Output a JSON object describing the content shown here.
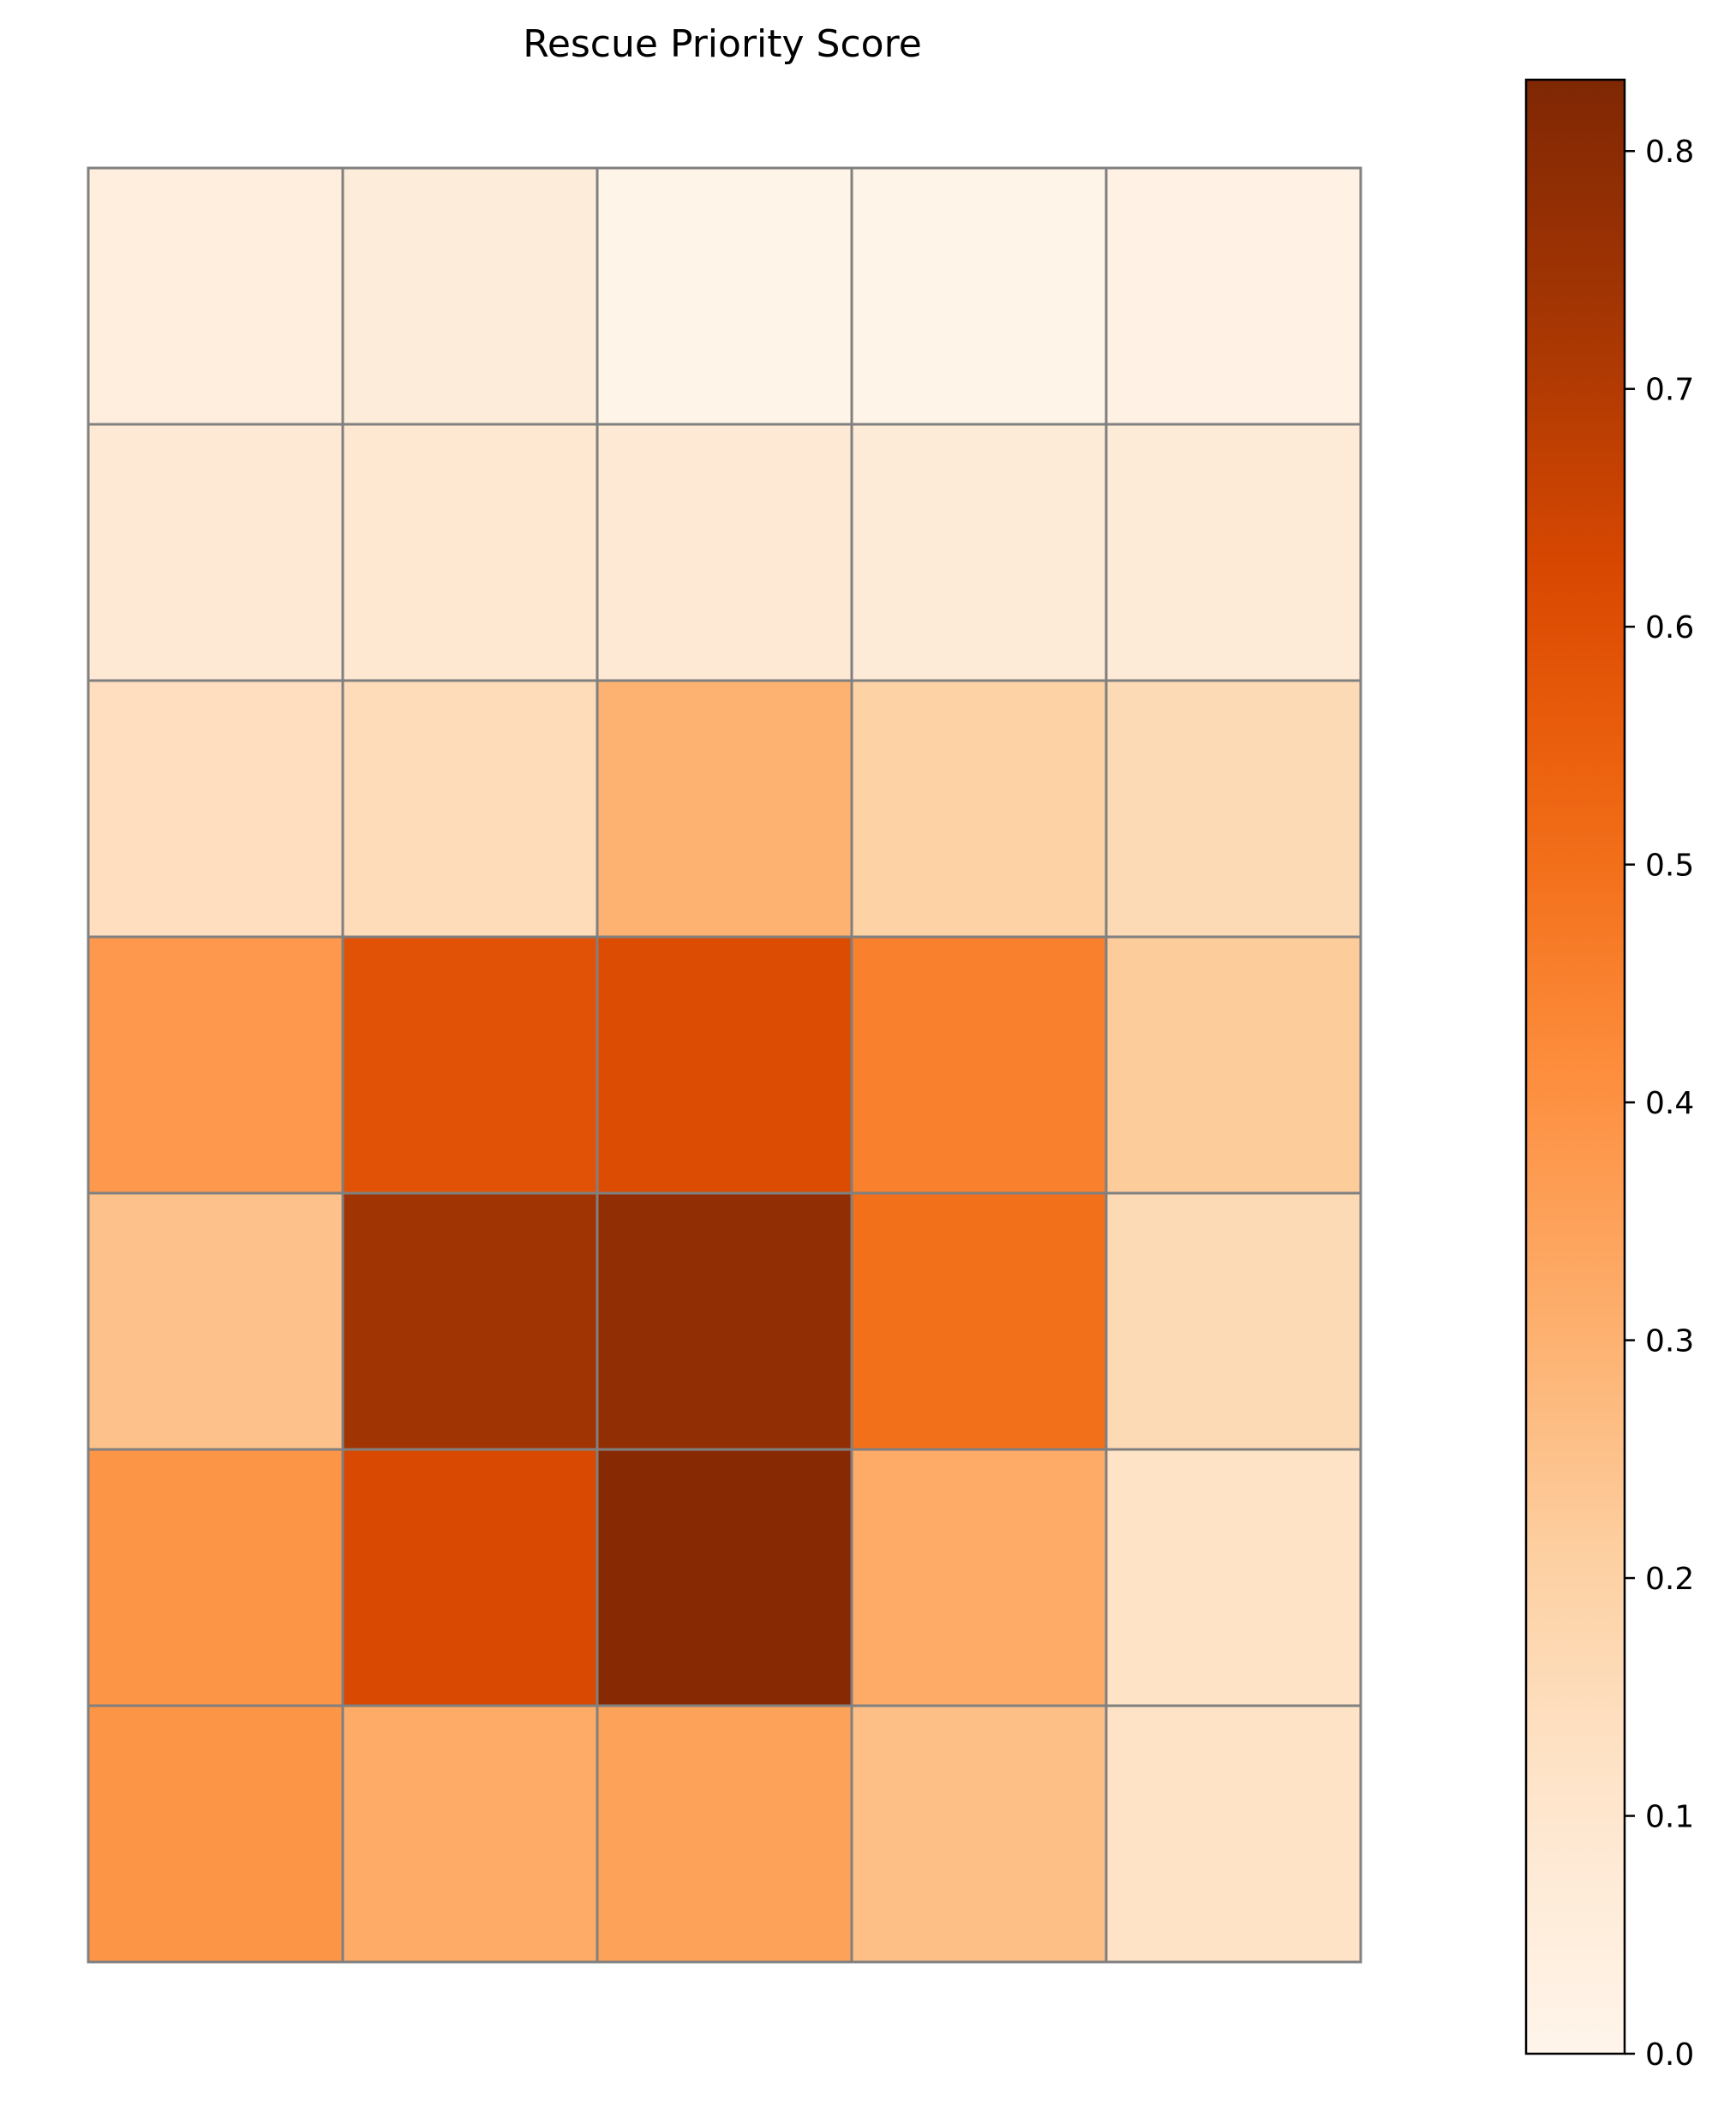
{
  "chart_data": {
    "type": "heatmap",
    "title": "Rescue Priority Score",
    "xlabel": "",
    "ylabel": "",
    "rows": 7,
    "cols": 5,
    "values": [
      [
        0.05,
        0.06,
        0.01,
        0.01,
        0.02
      ],
      [
        0.08,
        0.09,
        0.08,
        0.07,
        0.07
      ],
      [
        0.14,
        0.15,
        0.3,
        0.2,
        0.16
      ],
      [
        0.38,
        0.59,
        0.61,
        0.45,
        0.22
      ],
      [
        0.25,
        0.74,
        0.78,
        0.5,
        0.16
      ],
      [
        0.39,
        0.62,
        0.81,
        0.32,
        0.12
      ],
      [
        0.39,
        0.32,
        0.35,
        0.26,
        0.12
      ]
    ],
    "colormap": "Oranges",
    "colorbar": {
      "vmin": 0.0,
      "vmax": 0.83,
      "ticks": [
        0.0,
        0.1,
        0.2,
        0.3,
        0.4,
        0.5,
        0.6,
        0.7,
        0.8
      ],
      "tick_labels": [
        "0.0",
        "0.1",
        "0.2",
        "0.3",
        "0.4",
        "0.5",
        "0.6",
        "0.7",
        "0.8"
      ]
    },
    "cell_edge_color": "#808080",
    "grid": true,
    "legend": "none"
  }
}
